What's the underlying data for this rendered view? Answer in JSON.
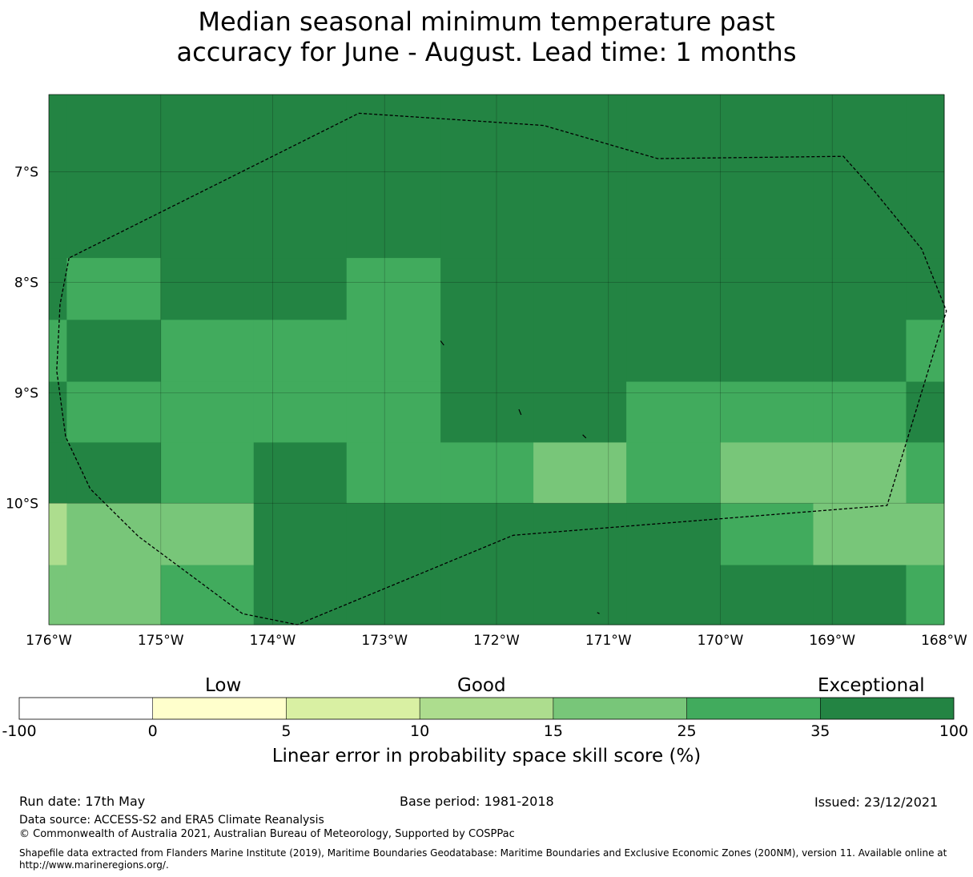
{
  "title": {
    "line1": "Median seasonal minimum temperature past",
    "line2": "accuracy for June - August. Lead time: 1 months"
  },
  "map": {
    "lon_range": [
      -176,
      -168
    ],
    "lat_range": [
      -11.1,
      -6.3
    ],
    "lon_ticks": [
      {
        "value": -176,
        "label": "176°W"
      },
      {
        "value": -175,
        "label": "175°W"
      },
      {
        "value": -174,
        "label": "174°W"
      },
      {
        "value": -173,
        "label": "173°W"
      },
      {
        "value": -172,
        "label": "172°W"
      },
      {
        "value": -171,
        "label": "171°W"
      },
      {
        "value": -170,
        "label": "170°W"
      },
      {
        "value": -169,
        "label": "169°W"
      },
      {
        "value": -168,
        "label": "168°W"
      }
    ],
    "lat_ticks": [
      {
        "value": -7,
        "label": "7°S"
      },
      {
        "value": -8,
        "label": "8°S"
      },
      {
        "value": -9,
        "label": "9°S"
      },
      {
        "value": -10,
        "label": "10°S"
      }
    ],
    "grid": true,
    "cell_lon_edges": [
      -176,
      -175.84,
      -175.0,
      -174.17,
      -173.34,
      -172.5,
      -171.67,
      -170.84,
      -170.0,
      -169.17,
      -168.34,
      -168
    ],
    "cell_lat_edges": [
      -6.3,
      -7.78,
      -8.34,
      -8.9,
      -9.45,
      -10.0,
      -10.56,
      -11.1
    ],
    "category_colors": [
      "#ffffff",
      "#ffffcc",
      "#d9f0a3",
      "#addd8e",
      "#78c679",
      "#41ab5d",
      "#238443"
    ],
    "cell_categories": [
      [
        6,
        6,
        6,
        6,
        6,
        6,
        6,
        6,
        6,
        6,
        6
      ],
      [
        6,
        5,
        6,
        6,
        5,
        6,
        6,
        6,
        6,
        6,
        6
      ],
      [
        5,
        6,
        5,
        5,
        5,
        6,
        6,
        6,
        6,
        6,
        5
      ],
      [
        6,
        5,
        5,
        5,
        5,
        6,
        6,
        5,
        5,
        5,
        6
      ],
      [
        6,
        6,
        5,
        6,
        5,
        5,
        4,
        5,
        4,
        4,
        5
      ],
      [
        3,
        4,
        4,
        6,
        6,
        6,
        6,
        6,
        5,
        4,
        4
      ],
      [
        4,
        4,
        5,
        6,
        6,
        6,
        6,
        6,
        6,
        6,
        5
      ]
    ],
    "eez_boundary": [
      [
        -175.82,
        -7.78
      ],
      [
        -175.9,
        -8.2
      ],
      [
        -175.93,
        -8.8
      ],
      [
        -175.85,
        -9.4
      ],
      [
        -175.63,
        -9.87
      ],
      [
        -175.2,
        -10.3
      ],
      [
        -174.27,
        -11.0
      ],
      [
        -173.78,
        -11.1
      ],
      [
        -171.85,
        -10.29
      ],
      [
        -168.51,
        -10.02
      ],
      [
        -167.98,
        -8.26
      ],
      [
        -168.2,
        -7.7
      ],
      [
        -168.62,
        -7.18
      ],
      [
        -168.9,
        -6.86
      ],
      [
        -170.56,
        -6.88
      ],
      [
        -171.58,
        -6.58
      ],
      [
        -173.23,
        -6.47
      ],
      [
        -175.82,
        -7.78
      ]
    ],
    "islands": [
      [
        [
          -172.5,
          -8.53
        ],
        [
          -172.47,
          -8.57
        ]
      ],
      [
        [
          -171.8,
          -9.15
        ],
        [
          -171.78,
          -9.2
        ]
      ],
      [
        [
          -171.23,
          -9.38
        ],
        [
          -171.2,
          -9.41
        ]
      ],
      [
        [
          -171.1,
          -10.99
        ],
        [
          -171.08,
          -11.0
        ]
      ]
    ]
  },
  "colorbar": {
    "category_words": [
      "Low",
      "Good",
      "Exceptional"
    ],
    "bounds": [
      "-100",
      "0",
      "5",
      "10",
      "15",
      "25",
      "35",
      "100"
    ],
    "colors": [
      "#ffffff",
      "#ffffcc",
      "#d9f0a3",
      "#addd8e",
      "#78c679",
      "#41ab5d",
      "#238443"
    ],
    "label": "Linear error in probability space skill score (%)"
  },
  "footer": {
    "run_date": "Run date: 17th May",
    "base_period": "Base period: 1981-2018",
    "issued": "Issued: 23/12/2021",
    "data_source": "Data source: ACCESS-S2 and ERA5 Climate Reanalysis",
    "copyright": "© Commonwealth of Australia 2021, Australian Bureau of Meteorology, Supported by COSPPac",
    "shapefile": "Shapefile data extracted from Flanders Marine Institute (2019), Maritime Boundaries Geodatabase: Maritime Boundaries and Exclusive Economic Zones (200NM), version 11. Available online at http://www.marineregions.org/."
  }
}
